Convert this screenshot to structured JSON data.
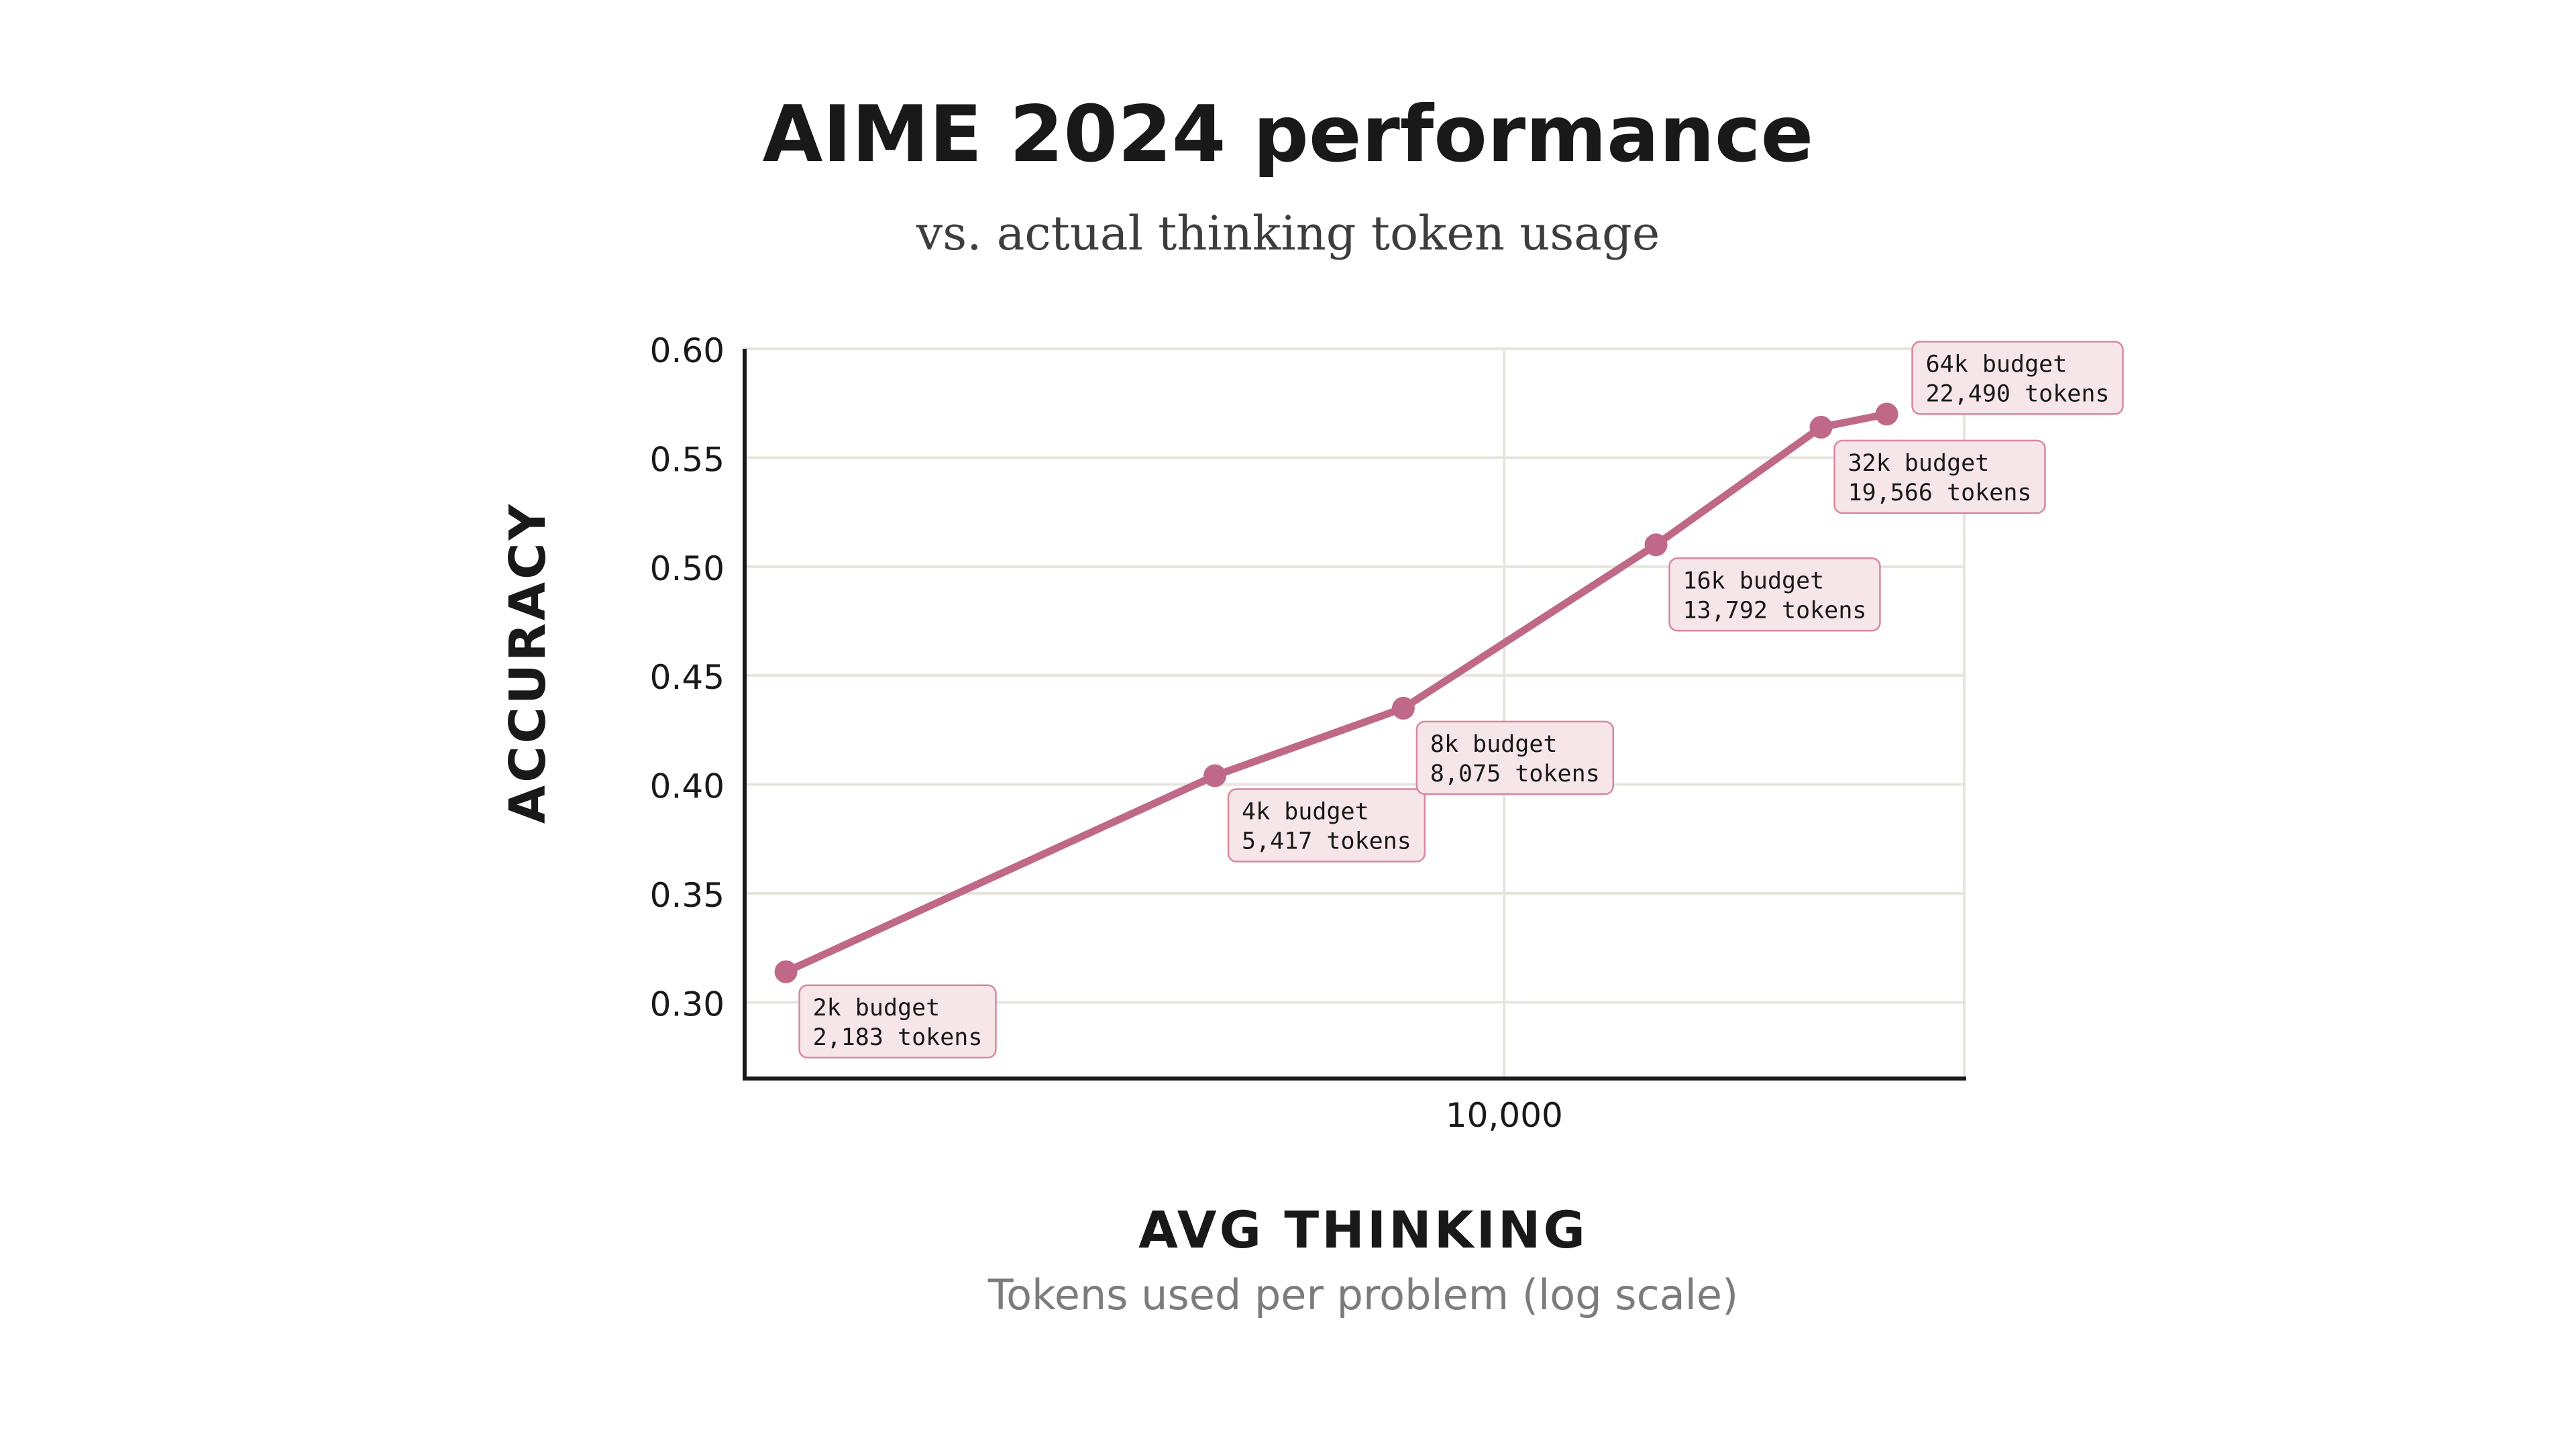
{
  "chart_data": {
    "type": "line",
    "title": "AIME 2024 performance",
    "subtitle": "vs. actual thinking token usage",
    "ylabel": "ACCURACY",
    "xlabel": "AVG THINKING",
    "xlabel_sub": "Tokens used per problem (log scale)",
    "x_scale": "log",
    "xlim": [
      2000,
      26500
    ],
    "ylim": [
      0.265,
      0.6
    ],
    "yticks": [
      0.3,
      0.35,
      0.4,
      0.45,
      0.5,
      0.55,
      0.6
    ],
    "ytick_labels": [
      "0.30",
      "0.35",
      "0.40",
      "0.45",
      "0.50",
      "0.55",
      "0.60"
    ],
    "xticks": [
      10000
    ],
    "xtick_labels": [
      "10,000"
    ],
    "grid": true,
    "series_color": "#c06887",
    "label_fill": "#f6e6e9",
    "label_stroke": "#d9879e",
    "points": [
      {
        "x": 2183,
        "y": 0.314,
        "budget": "2k budget",
        "tokens": "2,183 tokens",
        "label_side": "below"
      },
      {
        "x": 5417,
        "y": 0.404,
        "budget": "4k budget",
        "tokens": "5,417 tokens",
        "label_side": "below"
      },
      {
        "x": 8075,
        "y": 0.435,
        "budget": "8k budget",
        "tokens": "8,075 tokens",
        "label_side": "below"
      },
      {
        "x": 13792,
        "y": 0.51,
        "budget": "16k budget",
        "tokens": "13,792 tokens",
        "label_side": "below"
      },
      {
        "x": 19566,
        "y": 0.564,
        "budget": "32k budget",
        "tokens": "19,566 tokens",
        "label_side": "below"
      },
      {
        "x": 22490,
        "y": 0.57,
        "budget": "64k budget",
        "tokens": "22,490 tokens",
        "label_side": "above"
      }
    ]
  }
}
